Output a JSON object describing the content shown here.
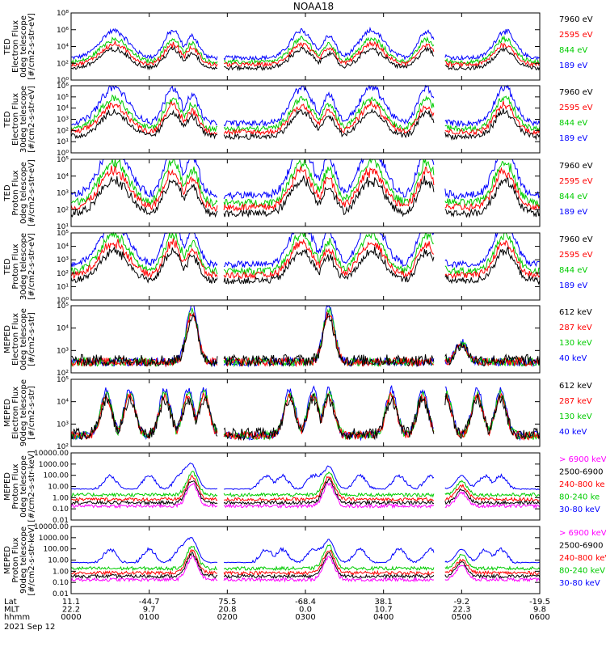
{
  "chart_data": {
    "type": "line",
    "title": "NOAA18",
    "panels": [
      {
        "ylabel": [
          "TED",
          "Electron Flux",
          "0deg telescope",
          "[#/cm2-s-str-eV]"
        ],
        "yticks": [
          "10⁰",
          "10²",
          "10⁴",
          "10⁶",
          "10⁸"
        ],
        "ylog": [
          0,
          8
        ],
        "legend": [
          {
            "name": "7960 eV",
            "color": "#000000"
          },
          {
            "name": "2595 eV",
            "color": "#ff0000"
          },
          {
            "name": "844 eV",
            "color": "#00cc00"
          },
          {
            "name": "189 eV",
            "color": "#0000ff"
          }
        ]
      },
      {
        "ylabel": [
          "TED",
          "Electron Flux",
          "30deg telescope",
          "[#/cm2-s-str-eV]"
        ],
        "yticks": [
          "10⁰",
          "10¹",
          "10²",
          "10³",
          "10⁴",
          "10⁵",
          "10⁶"
        ],
        "ylog": [
          0,
          6
        ],
        "legend": [
          {
            "name": "7960 eV",
            "color": "#000000"
          },
          {
            "name": "2595 eV",
            "color": "#ff0000"
          },
          {
            "name": "844 eV",
            "color": "#00cc00"
          },
          {
            "name": "189 eV",
            "color": "#0000ff"
          }
        ]
      },
      {
        "ylabel": [
          "TED",
          "Proton Flux",
          "0deg telescope",
          "[#/cm2-s-str-eV]"
        ],
        "yticks": [
          "10¹",
          "10²",
          "10³",
          "10⁴",
          "10⁵"
        ],
        "ylog": [
          0.6,
          5
        ],
        "legend": [
          {
            "name": "7960 eV",
            "color": "#000000"
          },
          {
            "name": "2595 eV",
            "color": "#ff0000"
          },
          {
            "name": "844 eV",
            "color": "#00cc00"
          },
          {
            "name": "189 eV",
            "color": "#0000ff"
          }
        ]
      },
      {
        "ylabel": [
          "TED",
          "Proton Flux",
          "30deg telescope",
          "[#/cm2-s-str-eV]"
        ],
        "yticks": [
          "10⁰",
          "10¹",
          "10²",
          "10³",
          "10⁴",
          "10⁵"
        ],
        "ylog": [
          0,
          5
        ],
        "legend": [
          {
            "name": "7960 eV",
            "color": "#000000"
          },
          {
            "name": "2595 eV",
            "color": "#ff0000"
          },
          {
            "name": "844 eV",
            "color": "#00cc00"
          },
          {
            "name": "189 eV",
            "color": "#0000ff"
          }
        ]
      },
      {
        "ylabel": [
          "MEPED",
          "Electron Flux",
          "0deg telescope",
          "[#/cm2-s-str]"
        ],
        "yticks": [
          "10²",
          "10³",
          "10⁴",
          "10⁵"
        ],
        "ylog": [
          1.6,
          5.6
        ],
        "legend": [
          {
            "name": "612 keV",
            "color": "#000000"
          },
          {
            "name": "287 keV",
            "color": "#ff0000"
          },
          {
            "name": "130 keV",
            "color": "#00cc00"
          },
          {
            "name": "40 keV",
            "color": "#0000ff"
          }
        ]
      },
      {
        "ylabel": [
          "MEPED",
          "Electron Flux",
          "90deg telescope",
          "[#/cm2-s-str]"
        ],
        "yticks": [
          "10²",
          "10³",
          "10⁴",
          "10⁵"
        ],
        "ylog": [
          1.6,
          5.6
        ],
        "legend": [
          {
            "name": "612 keV",
            "color": "#000000"
          },
          {
            "name": "287 keV",
            "color": "#ff0000"
          },
          {
            "name": "130 keV",
            "color": "#00cc00"
          },
          {
            "name": "40 keV",
            "color": "#0000ff"
          }
        ]
      },
      {
        "ylabel": [
          "MEPED",
          "Proton Flux",
          "0deg telescope",
          "[#/cm2-s-str-keV]"
        ],
        "yticks": [
          "0.01",
          "0.10",
          "1.00",
          "10.00",
          "100.00",
          "1000.00",
          "10000.00"
        ],
        "ylog": [
          -2,
          4
        ],
        "legend": [
          {
            "name": "> 6900 keV",
            "color": "#ff00ff"
          },
          {
            "name": "2500-6900",
            "color": "#000000"
          },
          {
            "name": "240-800 ke",
            "color": "#ff0000"
          },
          {
            "name": "80-240 ke",
            "color": "#00cc00"
          },
          {
            "name": "30-80 keV",
            "color": "#0000ff"
          }
        ]
      },
      {
        "ylabel": [
          "MEPED",
          "Proton Flux",
          "90deg telescope",
          "[#/cm2-s-str-keV]"
        ],
        "yticks": [
          "0.01",
          "0.10",
          "1.00",
          "10.00",
          "100.00",
          "1000.00",
          "10000.00"
        ],
        "ylog": [
          -2,
          4
        ],
        "legend": [
          {
            "name": "> 6900 keV",
            "color": "#ff00ff"
          },
          {
            "name": "2500-6900",
            "color": "#000000"
          },
          {
            "name": "240-800 keV",
            "color": "#ff0000"
          },
          {
            "name": "80-240 keV",
            "color": "#00cc00"
          },
          {
            "name": "30-80 keV",
            "color": "#0000ff"
          }
        ]
      }
    ],
    "xaxis": {
      "rows": [
        {
          "label": "Lat",
          "values": [
            "11.1",
            "-44.7",
            "75.5",
            "-68.4",
            "38.1",
            "-9.2",
            "-19.5"
          ]
        },
        {
          "label": "MLT",
          "values": [
            "22.2",
            "9.7",
            "20.8",
            "0.0",
            "10.7",
            "22.3",
            "9.8"
          ]
        },
        {
          "label": "hhmm",
          "values": [
            "0000",
            "0100",
            "0200",
            "0300",
            "0400",
            "0500",
            "0600"
          ]
        }
      ],
      "range_hours": [
        0,
        6
      ],
      "date": "2021 Sep 12"
    },
    "grid": false
  }
}
